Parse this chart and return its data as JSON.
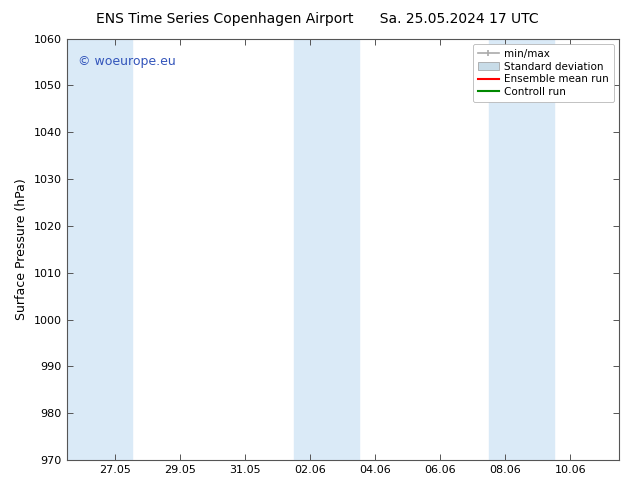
{
  "title_left": "ENS Time Series Copenhagen Airport",
  "title_right": "Sa. 25.05.2024 17 UTC",
  "ylabel": "Surface Pressure (hPa)",
  "ylim": [
    970,
    1060
  ],
  "yticks": [
    970,
    980,
    990,
    1000,
    1010,
    1020,
    1030,
    1040,
    1050,
    1060
  ],
  "x_tick_labels": [
    "27.05",
    "29.05",
    "31.05",
    "02.06",
    "04.06",
    "06.06",
    "08.06",
    "10.06"
  ],
  "x_tick_positions": [
    1,
    3,
    5,
    7,
    9,
    11,
    13,
    15
  ],
  "shaded_bands": [
    {
      "x_start": -0.5,
      "x_end": 1.5
    },
    {
      "x_start": 6.5,
      "x_end": 8.5
    },
    {
      "x_start": 12.5,
      "x_end": 14.5
    }
  ],
  "shaded_color": "#daeaf7",
  "background_color": "#ffffff",
  "watermark_text": "© woeurope.eu",
  "watermark_color": "#3355bb",
  "legend_items": [
    {
      "label": "min/max",
      "color": "#aaaaaa",
      "type": "errorbar"
    },
    {
      "label": "Standard deviation",
      "color": "#c8dce8",
      "type": "fill"
    },
    {
      "label": "Ensemble mean run",
      "color": "#ff0000",
      "type": "line"
    },
    {
      "label": "Controll run",
      "color": "#008800",
      "type": "line"
    }
  ],
  "title_fontsize": 10,
  "axis_label_fontsize": 9,
  "tick_fontsize": 8,
  "legend_fontsize": 7.5,
  "watermark_fontsize": 9,
  "x_min": -0.5,
  "x_max": 16.5
}
